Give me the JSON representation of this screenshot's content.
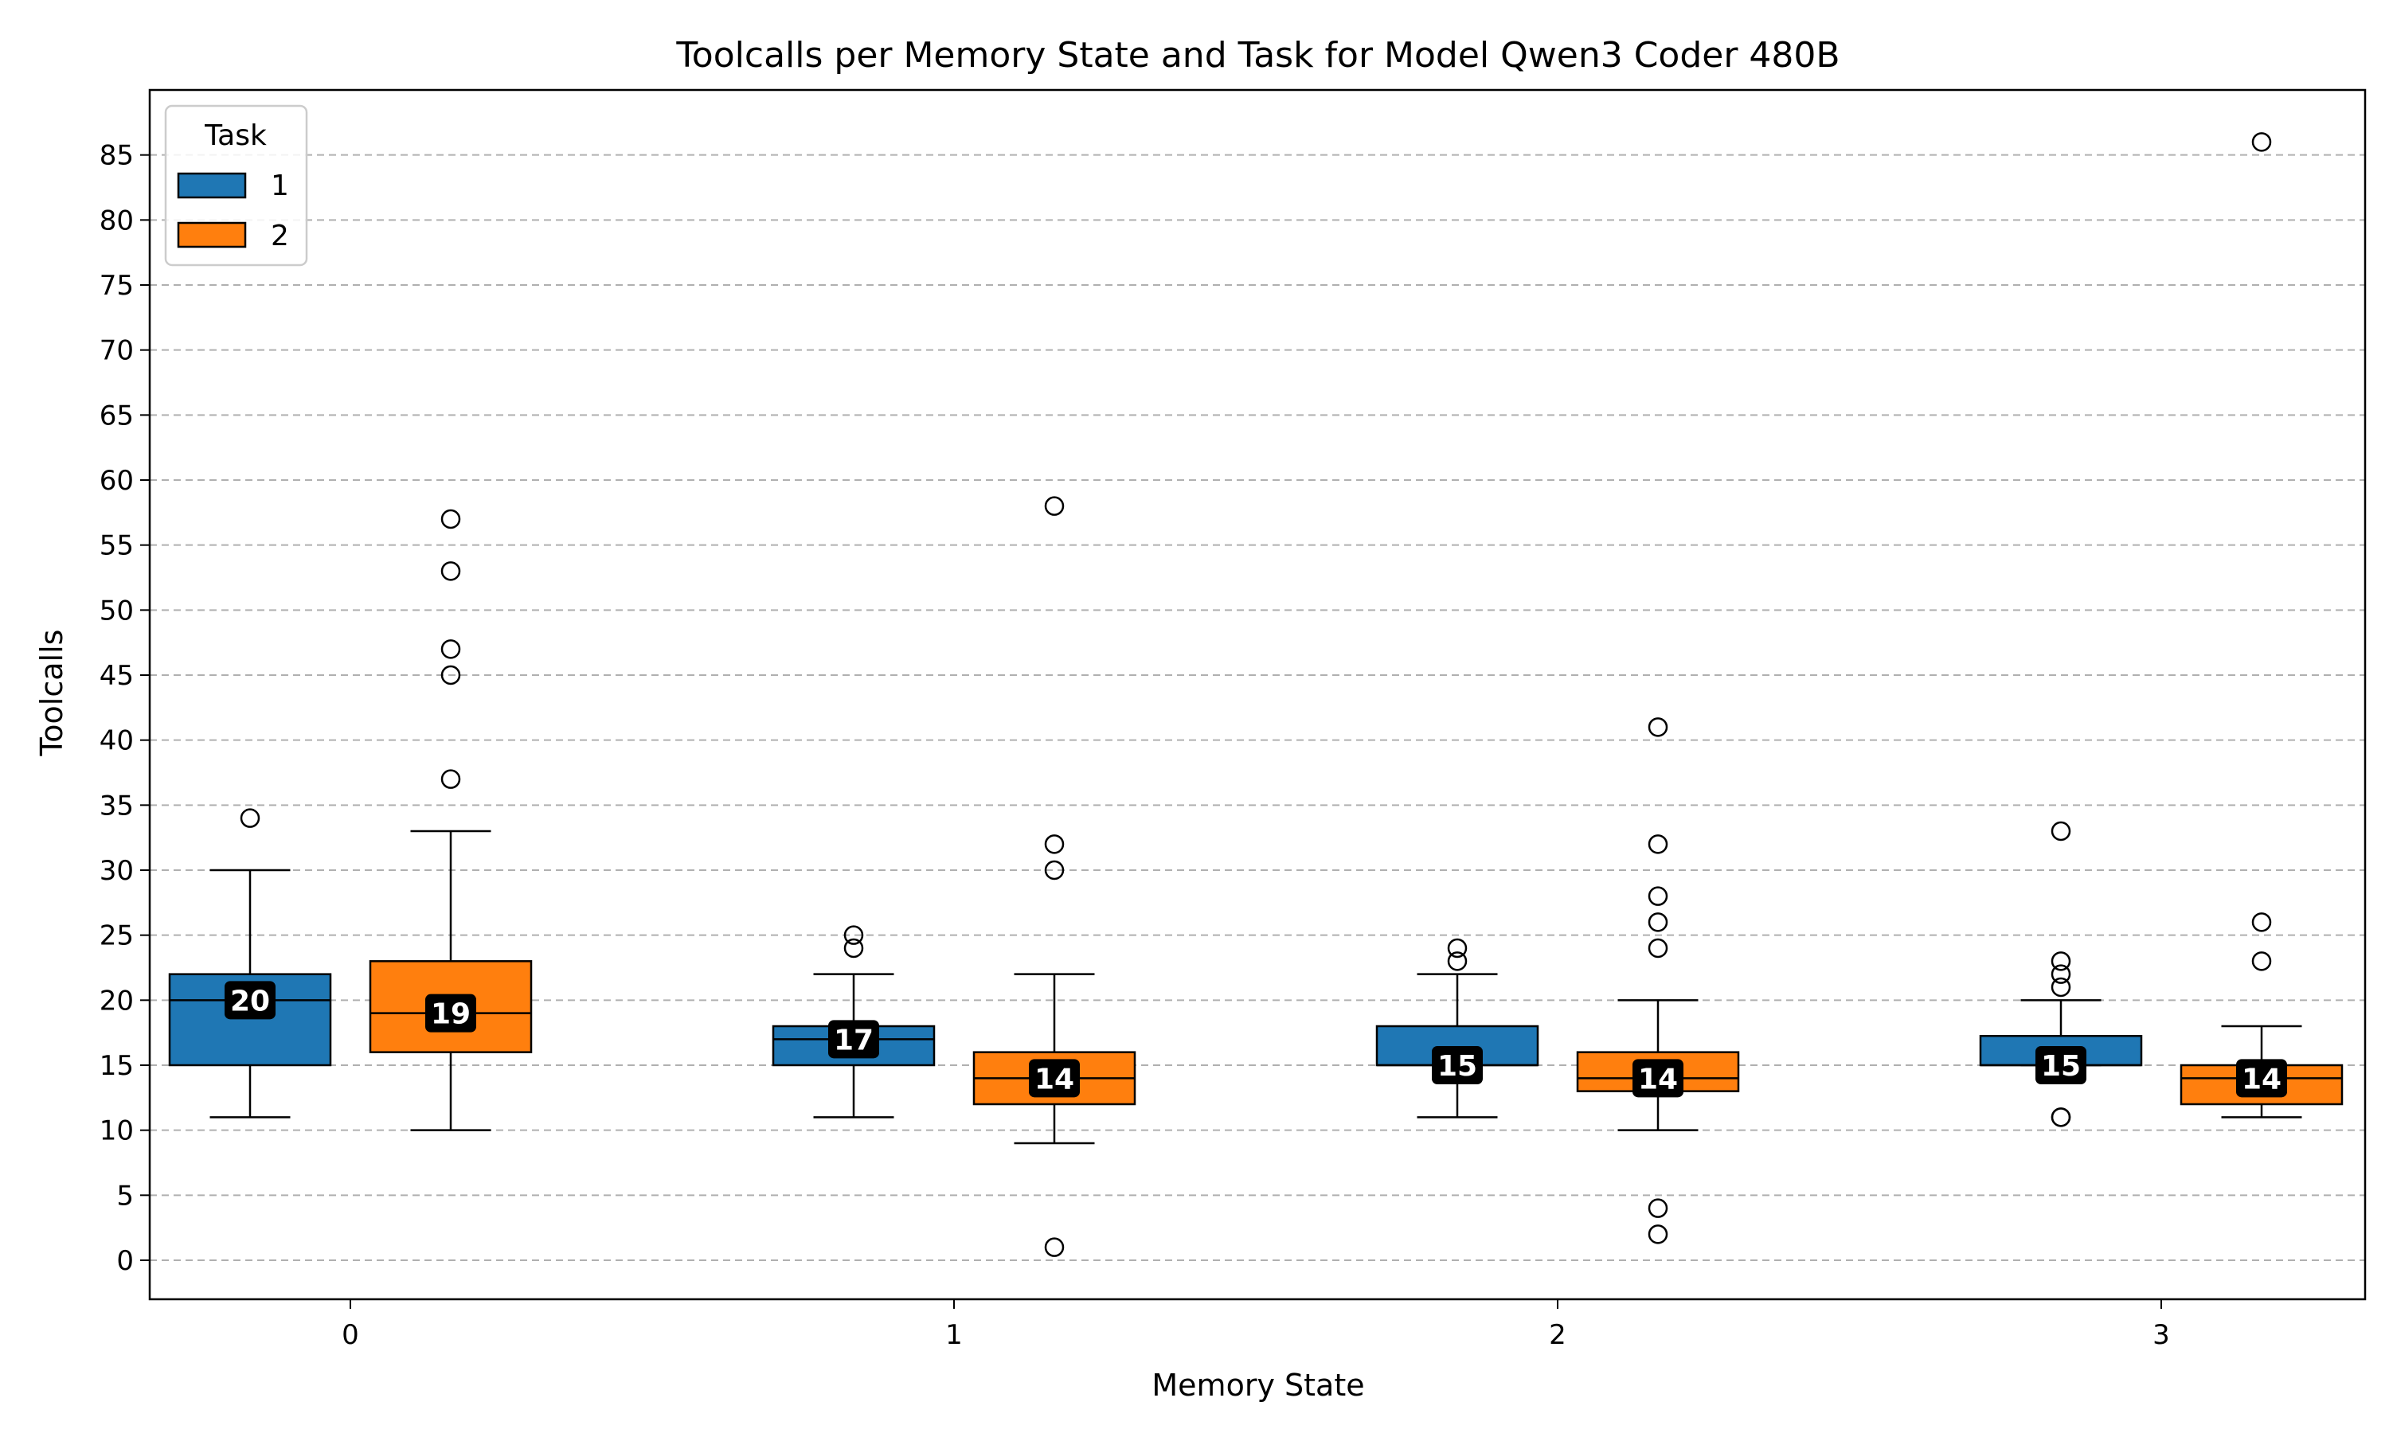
{
  "chart_data": {
    "type": "box",
    "title": "Toolcalls per Memory State and Task for Model Qwen3 Coder 480B",
    "xlabel": "Memory State",
    "ylabel": "Toolcalls",
    "categories": [
      "0",
      "1",
      "2",
      "3"
    ],
    "yticks": [
      "0",
      "5",
      "10",
      "15",
      "20",
      "25",
      "30",
      "35",
      "40",
      "45",
      "50",
      "55",
      "60",
      "65",
      "70",
      "75",
      "80",
      "85"
    ],
    "ylim": [
      -3,
      90
    ],
    "grid": "y-dashed",
    "legend": {
      "title": "Task",
      "position": "top-left",
      "entries": [
        {
          "label": "1",
          "color": "#1f77b4"
        },
        {
          "label": "2",
          "color": "#ff7f0e"
        }
      ]
    },
    "series": [
      {
        "name": "1",
        "color": "#1f77b4",
        "boxes": [
          {
            "category": "0",
            "whisker_low": 11,
            "q1": 15,
            "median": 20,
            "q3": 22,
            "whisker_high": 30,
            "outliers": [
              34
            ],
            "median_label": "20"
          },
          {
            "category": "1",
            "whisker_low": 11,
            "q1": 15,
            "median": 17,
            "q3": 18,
            "whisker_high": 22,
            "outliers": [
              24,
              25
            ],
            "median_label": "17"
          },
          {
            "category": "2",
            "whisker_low": 11,
            "q1": 15,
            "median": 15,
            "q3": 18,
            "whisker_high": 22,
            "outliers": [
              23,
              24
            ],
            "median_label": "15"
          },
          {
            "category": "3",
            "whisker_low": 15,
            "q1": 15,
            "median": 15,
            "q3": 17.25,
            "whisker_high": 20,
            "outliers": [
              11,
              11,
              21,
              22,
              23,
              33
            ],
            "median_label": "15"
          }
        ]
      },
      {
        "name": "2",
        "color": "#ff7f0e",
        "boxes": [
          {
            "category": "0",
            "whisker_low": 10,
            "q1": 16,
            "median": 19,
            "q3": 23,
            "whisker_high": 33,
            "outliers": [
              37,
              45,
              47,
              53,
              57
            ],
            "median_label": "19"
          },
          {
            "category": "1",
            "whisker_low": 9,
            "q1": 12,
            "median": 14,
            "q3": 16,
            "whisker_high": 22,
            "outliers": [
              1,
              30,
              32,
              58
            ],
            "median_label": "14"
          },
          {
            "category": "2",
            "whisker_low": 10,
            "q1": 13,
            "median": 14,
            "q3": 16,
            "whisker_high": 20,
            "outliers": [
              2,
              4,
              24,
              26,
              28,
              32,
              41
            ],
            "median_label": "14"
          },
          {
            "category": "3",
            "whisker_low": 11,
            "q1": 12,
            "median": 14,
            "q3": 15,
            "whisker_high": 18,
            "outliers": [
              23,
              26,
              86
            ],
            "median_label": "14"
          }
        ]
      }
    ]
  }
}
